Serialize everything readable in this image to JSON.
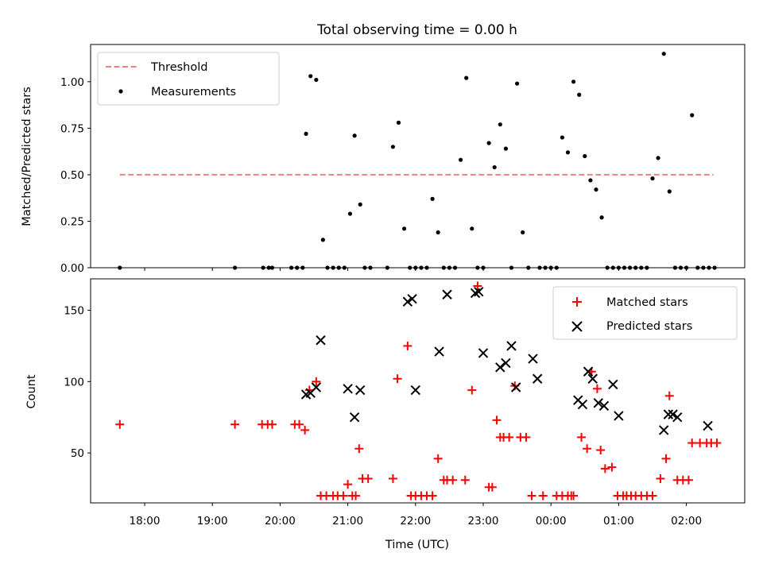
{
  "chart_data": [
    {
      "type": "scatter",
      "title": "Total observing time = 0.00 h",
      "xlabel": "",
      "ylabel": "Matched/Predicted stars",
      "ylim": [
        0,
        1.2
      ],
      "yticks": [
        "0.00",
        "0.25",
        "0.50",
        "0.75",
        "1.00"
      ],
      "legend": {
        "position": "top-left",
        "entries": [
          "Threshold",
          "Measurements"
        ]
      },
      "colors": {
        "threshold": "#f08080",
        "measurements": "#000000"
      },
      "threshold": {
        "name": "Threshold",
        "value": 0.5,
        "x_start": "17:38",
        "x_end": "02:24"
      },
      "series": [
        {
          "name": "Measurements",
          "x": [
            "17:38",
            "19:20",
            "19:45",
            "19:50",
            "19:53",
            "20:10",
            "20:15",
            "20:20",
            "20:23",
            "20:27",
            "20:32",
            "20:38",
            "20:42",
            "20:47",
            "20:52",
            "20:57",
            "21:02",
            "21:06",
            "21:11",
            "21:15",
            "21:20",
            "21:35",
            "21:40",
            "21:45",
            "21:50",
            "21:55",
            "22:00",
            "22:05",
            "22:10",
            "22:15",
            "22:20",
            "22:25",
            "22:30",
            "22:35",
            "22:40",
            "22:45",
            "22:50",
            "22:55",
            "23:00",
            "23:05",
            "23:10",
            "23:15",
            "23:20",
            "23:25",
            "23:30",
            "23:35",
            "23:40",
            "23:50",
            "23:55",
            "00:00",
            "00:05",
            "00:10",
            "00:15",
            "00:20",
            "00:25",
            "00:30",
            "00:35",
            "00:40",
            "00:45",
            "00:50",
            "00:55",
            "01:00",
            "01:05",
            "01:10",
            "01:15",
            "01:20",
            "01:25",
            "01:30",
            "01:35",
            "01:40",
            "01:45",
            "01:50",
            "01:55",
            "02:00",
            "02:05",
            "02:10",
            "02:15",
            "02:20",
            "02:25"
          ],
          "values": [
            0,
            0,
            0,
            0,
            0,
            0,
            0,
            0,
            0.72,
            1.03,
            1.01,
            0.15,
            0,
            0,
            0,
            0,
            0.29,
            0.71,
            0.34,
            0,
            0,
            0,
            0.65,
            0.78,
            0.21,
            0,
            0,
            0,
            0,
            0.37,
            0.19,
            0,
            0,
            0,
            0.58,
            1.02,
            0.21,
            0,
            0,
            0.67,
            0.54,
            0.77,
            0.64,
            0,
            0.99,
            0.19,
            0,
            0,
            0,
            0,
            0,
            0.7,
            0.62,
            1.0,
            0.93,
            0.6,
            0.47,
            0.42,
            0.27,
            0,
            0,
            0,
            0,
            0,
            0,
            0,
            0,
            0.48,
            0.59,
            1.15,
            0.41,
            0,
            0,
            0,
            0.82,
            0,
            0,
            0,
            0
          ]
        }
      ]
    },
    {
      "type": "scatter",
      "title": "",
      "xlabel": "Time (UTC)",
      "ylabel": "Count",
      "ylim": [
        15,
        172
      ],
      "yticks": [
        "50",
        "100",
        "150"
      ],
      "xticks": [
        "18:00",
        "19:00",
        "20:00",
        "21:00",
        "22:00",
        "23:00",
        "00:00",
        "01:00",
        "02:00"
      ],
      "legend": {
        "position": "top-right",
        "entries": [
          "Matched stars",
          "Predicted stars"
        ]
      },
      "colors": {
        "matched": "#ff0000",
        "predicted": "#000000"
      },
      "series": [
        {
          "name": "Matched stars",
          "marker": "plus",
          "x": [
            "17:38",
            "19:20",
            "19:44",
            "19:49",
            "19:53",
            "20:13",
            "20:17",
            "20:22",
            "20:26",
            "20:32",
            "20:36",
            "20:41",
            "20:47",
            "20:51",
            "20:56",
            "21:00",
            "21:04",
            "21:07",
            "21:10",
            "21:13",
            "21:18",
            "21:40",
            "21:44",
            "21:53",
            "21:56",
            "22:00",
            "22:05",
            "22:10",
            "22:15",
            "22:20",
            "22:25",
            "22:28",
            "22:33",
            "22:44",
            "22:50",
            "22:55",
            "23:05",
            "23:08",
            "23:12",
            "23:15",
            "23:18",
            "23:23",
            "23:28",
            "23:33",
            "23:38",
            "23:43",
            "23:53",
            "00:05",
            "00:10",
            "00:15",
            "00:18",
            "00:20",
            "00:27",
            "00:32",
            "00:36",
            "00:41",
            "00:44",
            "00:48",
            "00:54",
            "00:59",
            "01:04",
            "01:07",
            "01:11",
            "01:15",
            "01:20",
            "01:25",
            "01:30",
            "01:37",
            "01:42",
            "01:45",
            "01:52",
            "01:57",
            "02:02",
            "02:05",
            "02:12",
            "02:18",
            "02:22",
            "02:27"
          ],
          "values": [
            70,
            70,
            70,
            70,
            70,
            70,
            70,
            66,
            94,
            100,
            20,
            20,
            20,
            20,
            20,
            28,
            20,
            20,
            53,
            32,
            32,
            32,
            102,
            125,
            20,
            20,
            20,
            20,
            20,
            46,
            31,
            31,
            31,
            31,
            94,
            167,
            26,
            26,
            73,
            61,
            61,
            61,
            97,
            61,
            61,
            20,
            20,
            20,
            20,
            20,
            20,
            20,
            61,
            53,
            107,
            95,
            52,
            39,
            40,
            20,
            20,
            20,
            20,
            20,
            20,
            20,
            20,
            32,
            46,
            90,
            31,
            31,
            31,
            57,
            57,
            57,
            57,
            57
          ]
        },
        {
          "name": "Predicted stars",
          "marker": "x",
          "x": [
            "20:23",
            "20:27",
            "20:32",
            "20:36",
            "21:00",
            "21:06",
            "21:11",
            "21:53",
            "21:57",
            "22:00",
            "22:21",
            "22:28",
            "22:53",
            "22:56",
            "23:00",
            "23:15",
            "23:20",
            "23:25",
            "23:29",
            "23:44",
            "23:48",
            "00:24",
            "00:28",
            "00:33",
            "00:37",
            "00:42",
            "00:47",
            "00:55",
            "01:00",
            "01:40",
            "01:44",
            "01:48",
            "01:52",
            "02:19"
          ],
          "values": [
            91,
            92,
            96,
            129,
            95,
            75,
            94,
            156,
            158,
            94,
            121,
            161,
            162,
            163,
            120,
            110,
            113,
            125,
            96,
            116,
            102,
            87,
            84,
            107,
            102,
            85,
            83,
            98,
            76,
            66,
            77,
            77,
            75,
            69
          ]
        }
      ]
    }
  ]
}
